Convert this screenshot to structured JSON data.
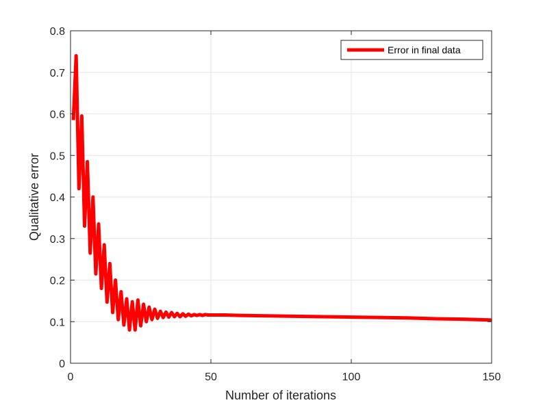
{
  "chart_data": {
    "type": "line",
    "xlabel": "Number of iterations",
    "ylabel": "Qualitative error",
    "xlim": [
      0,
      150
    ],
    "ylim": [
      0,
      0.8
    ],
    "xticks": [
      0,
      50,
      100,
      150
    ],
    "yticks": [
      0,
      0.1,
      0.2,
      0.3,
      0.4,
      0.5,
      0.6,
      0.7,
      0.8
    ],
    "xtick_labels": [
      "0",
      "50",
      "100",
      "150"
    ],
    "ytick_labels": [
      "0",
      "0.1",
      "0.2",
      "0.3",
      "0.4",
      "0.5",
      "0.6",
      "0.7",
      "0.8"
    ],
    "grid": true,
    "legend_position": "top-right",
    "series": [
      {
        "name": "Error in final data",
        "color": "#ff0000",
        "x": [
          1,
          2,
          3,
          4,
          5,
          6,
          7,
          8,
          9,
          10,
          11,
          12,
          13,
          14,
          15,
          16,
          17,
          18,
          19,
          20,
          21,
          22,
          23,
          24,
          25,
          26,
          27,
          28,
          29,
          30,
          31,
          32,
          33,
          34,
          35,
          36,
          37,
          38,
          39,
          40,
          41,
          42,
          43,
          44,
          45,
          46,
          47,
          48,
          49,
          50,
          52,
          55,
          60,
          70,
          80,
          90,
          100,
          110,
          120,
          130,
          140,
          150
        ],
        "y": [
          0.585,
          0.74,
          0.42,
          0.595,
          0.33,
          0.485,
          0.265,
          0.4,
          0.215,
          0.335,
          0.18,
          0.285,
          0.147,
          0.24,
          0.122,
          0.2,
          0.105,
          0.172,
          0.092,
          0.155,
          0.08,
          0.148,
          0.08,
          0.152,
          0.09,
          0.142,
          0.1,
          0.135,
          0.105,
          0.13,
          0.108,
          0.125,
          0.11,
          0.123,
          0.111,
          0.122,
          0.112,
          0.12,
          0.112,
          0.119,
          0.113,
          0.118,
          0.114,
          0.117,
          0.115,
          0.117,
          0.115,
          0.117,
          0.116,
          0.116,
          0.116,
          0.116,
          0.115,
          0.114,
          0.113,
          0.112,
          0.111,
          0.11,
          0.109,
          0.107,
          0.106,
          0.104
        ]
      }
    ]
  }
}
